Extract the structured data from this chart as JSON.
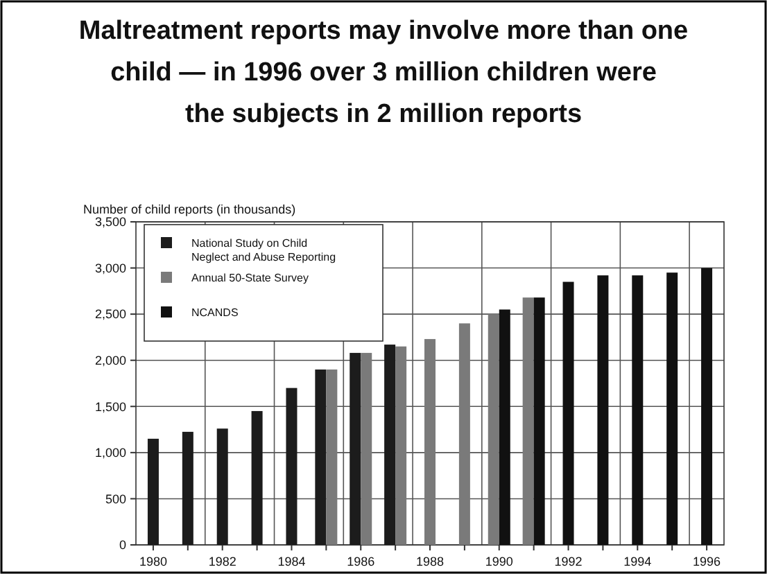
{
  "chart_data": {
    "type": "bar",
    "title": "Maltreatment reports may involve more than one child — in 1996 over 3 million children were the subjects in 2 million reports",
    "ylabel": "Number of child reports (in thousands)",
    "categories": [
      "1980",
      null,
      "1982",
      null,
      "1984",
      null,
      "1986",
      null,
      "1988",
      null,
      "1990",
      null,
      "1992",
      null,
      "1994",
      null,
      "1996"
    ],
    "series": [
      {
        "name": "National Study on Child Neglect and Abuse Reporting",
        "color": "#1c1c1c",
        "values": [
          1150,
          1225,
          1260,
          1450,
          1700,
          1900,
          2080,
          2170,
          null,
          null,
          null,
          null,
          null,
          null,
          null,
          null,
          null
        ]
      },
      {
        "name": "Annual 50-State Survey",
        "color": "#7a7a7a",
        "values": [
          null,
          null,
          null,
          null,
          null,
          1900,
          2080,
          2150,
          2230,
          2400,
          2500,
          2680,
          null,
          null,
          null,
          null,
          null
        ]
      },
      {
        "name": "NCANDS",
        "color": "#111111",
        "values": [
          null,
          null,
          null,
          null,
          null,
          null,
          null,
          null,
          null,
          null,
          2550,
          2680,
          2850,
          2920,
          2920,
          2950,
          3000
        ]
      }
    ],
    "ylim": [
      0,
      3500
    ],
    "yticks": [
      {
        "value": 0,
        "label": "0"
      },
      {
        "value": 500,
        "label": "500"
      },
      {
        "value": 1000,
        "label": "1,000"
      },
      {
        "value": 1500,
        "label": "1,500"
      },
      {
        "value": 2000,
        "label": "2,000"
      },
      {
        "value": 2500,
        "label": "2,500"
      },
      {
        "value": 3000,
        "label": "3,000"
      },
      {
        "value": 3500,
        "label": "3,500"
      }
    ],
    "grid": true,
    "legend": "top left"
  }
}
